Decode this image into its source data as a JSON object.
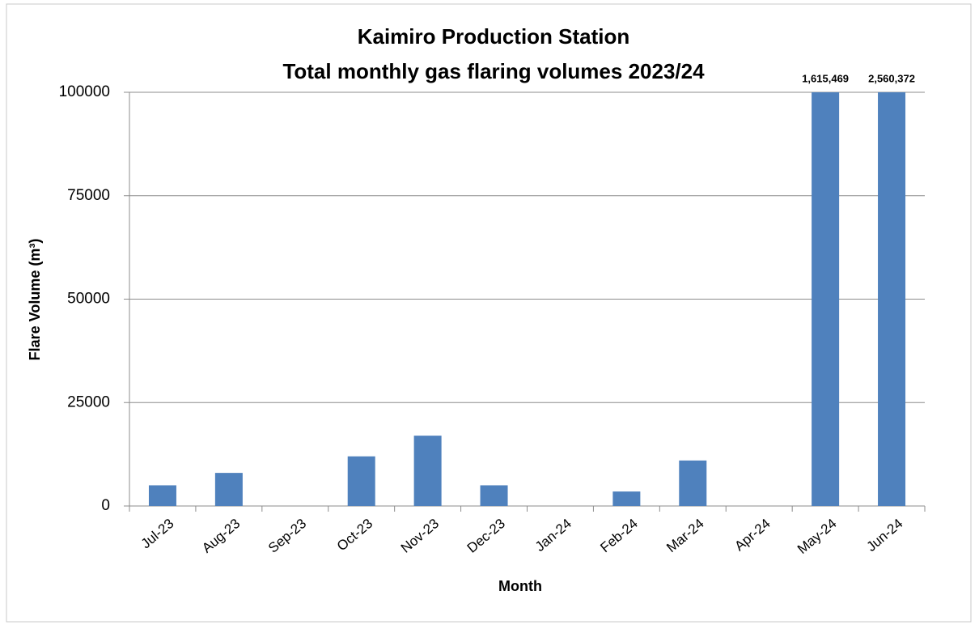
{
  "chart_data": {
    "type": "bar",
    "title": [
      "Kaimiro Production Station",
      "Total monthly gas flaring volumes 2023/24"
    ],
    "x_label": "Month",
    "y_label": "Flare Volume (m³)",
    "categories": [
      "Jul-23",
      "Aug-23",
      "Sep-23",
      "Oct-23",
      "Nov-23",
      "Dec-23",
      "Jan-24",
      "Feb-24",
      "Mar-24",
      "Apr-24",
      "May-24",
      "Jun-24"
    ],
    "values": [
      5000,
      8000,
      0,
      12000,
      17000,
      5000,
      0,
      3500,
      11000,
      0,
      1615469,
      2560372
    ],
    "value_labels": [
      null,
      null,
      null,
      null,
      null,
      null,
      null,
      null,
      null,
      null,
      "1,615,469",
      "2,560,372"
    ],
    "color": "#4f81bd",
    "ylim": [
      0,
      100000
    ],
    "yticks": [
      0,
      25000,
      50000,
      75000,
      100000
    ],
    "grid": true
  }
}
